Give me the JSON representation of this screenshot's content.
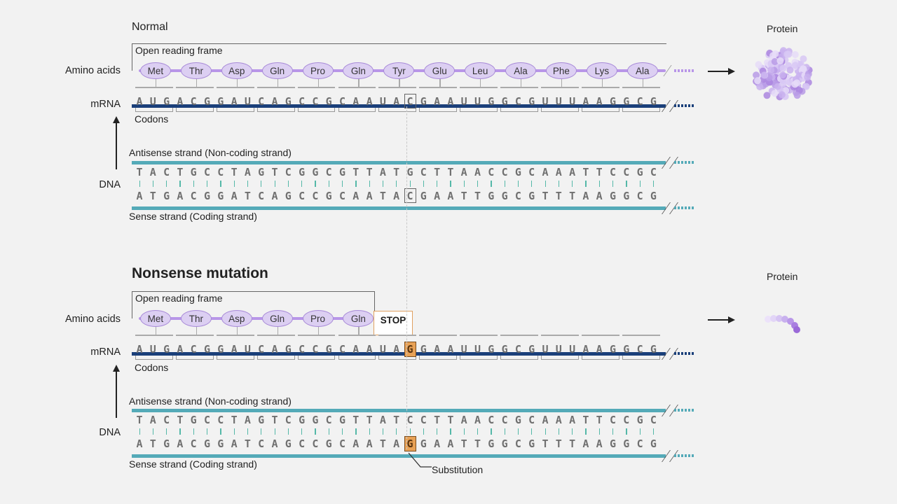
{
  "normal": {
    "title": "Normal",
    "orf_label": "Open reading frame",
    "amino_acids_label": "Amino acids",
    "mrna_label": "mRNA",
    "codons_label": "Codons",
    "dna_label": "DNA",
    "antisense_label": "Antisense strand (Non-coding strand)",
    "sense_label": "Sense strand (Coding strand)",
    "protein_label": "Protein",
    "amino_acids": [
      "Met",
      "Thr",
      "Asp",
      "Gln",
      "Pro",
      "Gln",
      "Tyr",
      "Glu",
      "Leu",
      "Ala",
      "Phe",
      "Lys",
      "Ala"
    ],
    "mrna": "AUGACGGAUCAGCCGCAAUACGAAUUGGCGUUUAAGGCG",
    "antisense": "TACTGCCTAGTCGGCGTTATGCTTAACCGCAAATTCCGC",
    "sense": "ATGACGGATCAGCCGCAATACGAATTGGCGTTTAAGGCG"
  },
  "mutant": {
    "title": "Nonsense mutation",
    "orf_label": "Open reading frame",
    "amino_acids_label": "Amino acids",
    "mrna_label": "mRNA",
    "codons_label": "Codons",
    "dna_label": "DNA",
    "antisense_label": "Antisense strand (Non-coding strand)",
    "sense_label": "Sense strand (Coding strand)",
    "protein_label": "Protein",
    "amino_acids": [
      "Met",
      "Thr",
      "Asp",
      "Gln",
      "Pro",
      "Gln"
    ],
    "stop_label": "STOP",
    "mrna": "AUGACGGAUCAGCCGCAAUAGGAAUUGGCGUUUAAGGCG",
    "antisense": "TACTGCCTAGTCGGCGTTATCCTTAACCGCAAATTCCGC",
    "sense": "ATGACGGATCAGCCGCAATAGGAATTGGCGTTTAAGGCG",
    "substitution_label": "Substitution"
  },
  "colors": {
    "amino_fill": "#dccff2",
    "amino_line": "#b896e8",
    "mrna": "#1a3f7a",
    "dna": "#54aab8",
    "mutation": "#e8a155"
  }
}
